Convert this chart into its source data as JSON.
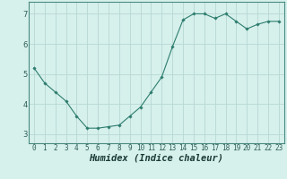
{
  "x": [
    0,
    1,
    2,
    3,
    4,
    5,
    6,
    7,
    8,
    9,
    10,
    11,
    12,
    13,
    14,
    15,
    16,
    17,
    18,
    19,
    20,
    21,
    22,
    23
  ],
  "y": [
    5.2,
    4.7,
    4.4,
    4.1,
    3.6,
    3.2,
    3.2,
    3.25,
    3.3,
    3.6,
    3.9,
    4.4,
    4.9,
    5.9,
    6.8,
    7.0,
    7.0,
    6.85,
    7.0,
    6.75,
    6.5,
    6.65,
    6.75,
    6.75
  ],
  "xlabel": "Humidex (Indice chaleur)",
  "ylim": [
    2.7,
    7.4
  ],
  "xlim": [
    -0.5,
    23.5
  ],
  "yticks": [
    3,
    4,
    5,
    6,
    7
  ],
  "xticks": [
    0,
    1,
    2,
    3,
    4,
    5,
    6,
    7,
    8,
    9,
    10,
    11,
    12,
    13,
    14,
    15,
    16,
    17,
    18,
    19,
    20,
    21,
    22,
    23
  ],
  "line_color": "#2d7d6e",
  "marker": "D",
  "marker_size": 1.8,
  "bg_color": "#d6f0ec",
  "grid_color": "#b8d8d4",
  "tick_label_fontsize": 5.5,
  "xlabel_fontsize": 7.5,
  "line_width": 0.8
}
